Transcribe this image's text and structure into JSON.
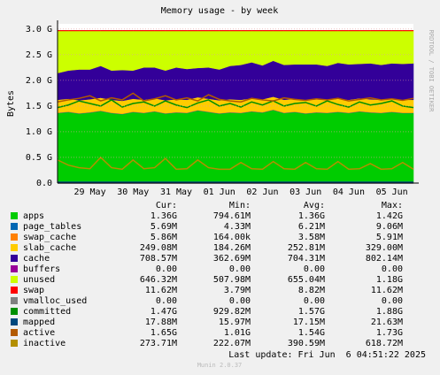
{
  "chart_data": {
    "type": "area",
    "title": "Memory usage - by week",
    "y_label": "Bytes",
    "side_note": "RRDTOOL / TOBI OETIKER",
    "categories": [
      null,
      null,
      null,
      "29 May",
      null,
      null,
      null,
      "30 May",
      null,
      null,
      null,
      "31 May",
      null,
      null,
      null,
      "01 Jun",
      null,
      null,
      null,
      "02 Jun",
      null,
      null,
      null,
      "03 Jun",
      null,
      null,
      null,
      "04 Jun",
      null,
      null,
      null,
      "05 Jun",
      null,
      null
    ],
    "ylim": [
      0,
      3.1
    ],
    "yticks": [
      {
        "value": 0,
        "label": "0.0"
      },
      {
        "value": 0.5,
        "label": "0.5 G"
      },
      {
        "value": 1,
        "label": "1.0 G"
      },
      {
        "value": 1.5,
        "label": "1.5 G"
      },
      {
        "value": 2,
        "label": "2.0 G"
      },
      {
        "value": 2.5,
        "label": "2.5 G"
      },
      {
        "value": 3,
        "label": "3.0 G"
      }
    ],
    "grid": true,
    "series": [
      {
        "name": "apps",
        "color": "#00cc00",
        "stacked": true,
        "values": [
          1.36,
          1.38,
          1.35,
          1.37,
          1.4,
          1.36,
          1.34,
          1.38,
          1.36,
          1.39,
          1.35,
          1.37,
          1.36,
          1.41,
          1.38,
          1.35,
          1.37,
          1.36,
          1.39,
          1.37,
          1.42,
          1.36,
          1.38,
          1.35,
          1.37,
          1.36,
          1.38,
          1.36,
          1.39,
          1.37,
          1.36,
          1.38,
          1.36,
          1.36
        ]
      },
      {
        "name": "page_tables",
        "color": "#0066b3",
        "stacked": true,
        "values": [
          0.006,
          0.006,
          0.006,
          0.006,
          0.006,
          0.006,
          0.006,
          0.006,
          0.006,
          0.006,
          0.006,
          0.006,
          0.006,
          0.006,
          0.006,
          0.006,
          0.006,
          0.006,
          0.006,
          0.006,
          0.006,
          0.006,
          0.006,
          0.006,
          0.006,
          0.006,
          0.006,
          0.006,
          0.006,
          0.006,
          0.006,
          0.006,
          0.006,
          0.006
        ]
      },
      {
        "name": "swap_cache",
        "color": "#ff8000",
        "stacked": true,
        "values": [
          0.006,
          0.006,
          0.006,
          0.006,
          0.006,
          0.006,
          0.006,
          0.006,
          0.006,
          0.006,
          0.006,
          0.006,
          0.006,
          0.006,
          0.006,
          0.006,
          0.006,
          0.006,
          0.006,
          0.006,
          0.006,
          0.006,
          0.006,
          0.006,
          0.006,
          0.006,
          0.006,
          0.006,
          0.006,
          0.006,
          0.006,
          0.006,
          0.006,
          0.006
        ]
      },
      {
        "name": "slab_cache",
        "color": "#ffcc00",
        "stacked": true,
        "values": [
          0.25,
          0.25,
          0.25,
          0.25,
          0.25,
          0.25,
          0.25,
          0.25,
          0.25,
          0.25,
          0.25,
          0.25,
          0.25,
          0.25,
          0.25,
          0.25,
          0.25,
          0.25,
          0.25,
          0.25,
          0.25,
          0.25,
          0.25,
          0.25,
          0.25,
          0.25,
          0.25,
          0.25,
          0.25,
          0.25,
          0.25,
          0.25,
          0.25,
          0.25
        ]
      },
      {
        "name": "cache",
        "color": "#330099",
        "stacked": true,
        "values": [
          0.52,
          0.55,
          0.6,
          0.58,
          0.62,
          0.57,
          0.6,
          0.55,
          0.63,
          0.6,
          0.58,
          0.62,
          0.6,
          0.57,
          0.61,
          0.6,
          0.65,
          0.68,
          0.7,
          0.66,
          0.7,
          0.68,
          0.67,
          0.7,
          0.68,
          0.66,
          0.7,
          0.69,
          0.67,
          0.7,
          0.68,
          0.69,
          0.7,
          0.71
        ]
      },
      {
        "name": "buffers",
        "color": "#990099",
        "stacked": true,
        "values": [
          0,
          0,
          0,
          0,
          0,
          0,
          0,
          0,
          0,
          0,
          0,
          0,
          0,
          0,
          0,
          0,
          0,
          0,
          0,
          0,
          0,
          0,
          0,
          0,
          0,
          0,
          0,
          0,
          0,
          0,
          0,
          0,
          0,
          0
        ]
      },
      {
        "name": "unused",
        "color": "#ccff00",
        "stacked": true,
        "values": [
          0.82,
          0.77,
          0.75,
          0.75,
          0.68,
          0.77,
          0.76,
          0.77,
          0.71,
          0.71,
          0.77,
          0.71,
          0.74,
          0.72,
          0.71,
          0.75,
          0.68,
          0.66,
          0.61,
          0.67,
          0.58,
          0.66,
          0.65,
          0.65,
          0.65,
          0.68,
          0.62,
          0.65,
          0.64,
          0.63,
          0.66,
          0.63,
          0.64,
          0.63
        ]
      },
      {
        "name": "swap",
        "color": "#ff0000",
        "stacked": true,
        "values": [
          0.012,
          0.012,
          0.012,
          0.012,
          0.012,
          0.012,
          0.012,
          0.012,
          0.012,
          0.012,
          0.012,
          0.012,
          0.012,
          0.012,
          0.012,
          0.012,
          0.012,
          0.012,
          0.012,
          0.012,
          0.012,
          0.012,
          0.012,
          0.012,
          0.012,
          0.012,
          0.012,
          0.012,
          0.012,
          0.012,
          0.012,
          0.012,
          0.012,
          0.012
        ]
      },
      {
        "name": "vmalloc_used",
        "color": "#808080",
        "stacked": false,
        "values": [
          0,
          0,
          0,
          0,
          0,
          0,
          0,
          0,
          0,
          0,
          0,
          0,
          0,
          0,
          0,
          0,
          0,
          0,
          0,
          0,
          0,
          0,
          0,
          0,
          0,
          0,
          0,
          0,
          0,
          0,
          0,
          0,
          0,
          0
        ]
      },
      {
        "name": "committed",
        "color": "#008f00",
        "stacked": false,
        "values": [
          1.47,
          1.52,
          1.6,
          1.55,
          1.5,
          1.62,
          1.48,
          1.55,
          1.58,
          1.5,
          1.6,
          1.52,
          1.47,
          1.56,
          1.62,
          1.5,
          1.55,
          1.48,
          1.58,
          1.52,
          1.6,
          1.5,
          1.55,
          1.57,
          1.5,
          1.6,
          1.53,
          1.48,
          1.58,
          1.52,
          1.55,
          1.6,
          1.5,
          1.47
        ]
      },
      {
        "name": "mapped",
        "color": "#00487d",
        "stacked": false,
        "values": [
          0.018,
          0.018,
          0.018,
          0.018,
          0.018,
          0.018,
          0.018,
          0.018,
          0.018,
          0.018,
          0.018,
          0.018,
          0.018,
          0.018,
          0.018,
          0.018,
          0.018,
          0.018,
          0.018,
          0.018,
          0.018,
          0.018,
          0.018,
          0.018,
          0.018,
          0.018,
          0.018,
          0.018,
          0.018,
          0.018,
          0.018,
          0.018,
          0.018,
          0.018
        ]
      },
      {
        "name": "active",
        "color": "#b35a00",
        "stacked": false,
        "values": [
          1.58,
          1.62,
          1.65,
          1.7,
          1.6,
          1.66,
          1.62,
          1.75,
          1.6,
          1.64,
          1.7,
          1.62,
          1.66,
          1.6,
          1.72,
          1.63,
          1.6,
          1.58,
          1.65,
          1.62,
          1.6,
          1.66,
          1.63,
          1.61,
          1.64,
          1.62,
          1.65,
          1.6,
          1.63,
          1.66,
          1.62,
          1.64,
          1.61,
          1.65
        ]
      },
      {
        "name": "inactive",
        "color": "#b38f00",
        "stacked": false,
        "values": [
          0.45,
          0.35,
          0.3,
          0.28,
          0.5,
          0.3,
          0.27,
          0.45,
          0.28,
          0.3,
          0.48,
          0.27,
          0.28,
          0.45,
          0.3,
          0.27,
          0.27,
          0.4,
          0.28,
          0.27,
          0.42,
          0.28,
          0.27,
          0.4,
          0.28,
          0.27,
          0.42,
          0.27,
          0.28,
          0.38,
          0.27,
          0.28,
          0.4,
          0.27
        ]
      }
    ],
    "legend_table": {
      "columns": [
        "Cur:",
        "Min:",
        "Avg:",
        "Max:"
      ],
      "rows": [
        [
          "1.36G",
          "794.61M",
          "1.36G",
          "1.42G"
        ],
        [
          "5.69M",
          "4.33M",
          "6.21M",
          "9.06M"
        ],
        [
          "5.86M",
          "164.00k",
          "3.58M",
          "5.91M"
        ],
        [
          "249.08M",
          "184.26M",
          "252.81M",
          "329.00M"
        ],
        [
          "708.57M",
          "362.69M",
          "704.31M",
          "802.14M"
        ],
        [
          "0.00",
          "0.00",
          "0.00",
          "0.00"
        ],
        [
          "646.32M",
          "507.98M",
          "655.04M",
          "1.18G"
        ],
        [
          "11.62M",
          "3.79M",
          "8.82M",
          "11.62M"
        ],
        [
          "0.00",
          "0.00",
          "0.00",
          "0.00"
        ],
        [
          "1.47G",
          "929.82M",
          "1.57G",
          "1.88G"
        ],
        [
          "17.88M",
          "15.97M",
          "17.15M",
          "21.63M"
        ],
        [
          "1.65G",
          "1.01G",
          "1.54G",
          "1.73G"
        ],
        [
          "273.71M",
          "222.07M",
          "390.59M",
          "618.72M"
        ]
      ]
    },
    "last_update": "Last update: Fri Jun  6 04:51:22 2025",
    "footer": "Munin 2.0.37"
  }
}
